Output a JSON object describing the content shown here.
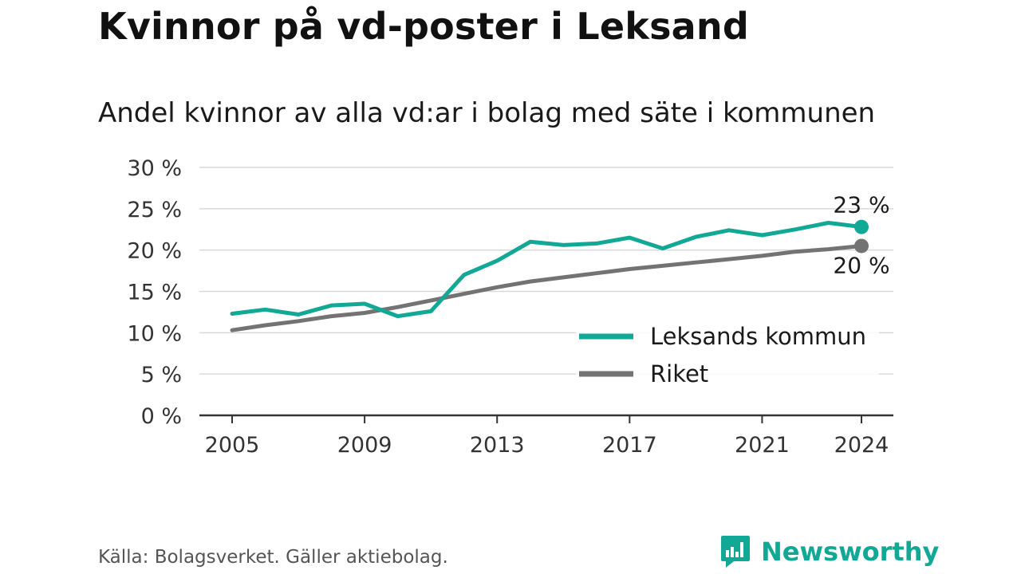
{
  "title": "Kvinnor på vd-poster i Leksand",
  "subtitle": "Andel kvinnor av alla vd:ar i bolag med säte i kommunen",
  "source": "Källa: Bolagsverket. Gäller aktiebolag.",
  "brand": "Newsworthy",
  "colors": {
    "leksand": "#12a896",
    "riket": "#737373",
    "grid": "#d9d9d9",
    "axis": "#333333",
    "brand": "#12a896"
  },
  "chart_data": {
    "type": "line",
    "x": [
      2005,
      2006,
      2007,
      2008,
      2009,
      2010,
      2011,
      2012,
      2013,
      2014,
      2015,
      2016,
      2017,
      2018,
      2019,
      2020,
      2021,
      2022,
      2023,
      2024
    ],
    "series": [
      {
        "name": "Leksands kommun",
        "values": [
          12.3,
          12.8,
          12.2,
          13.3,
          13.5,
          12.0,
          12.6,
          17.0,
          18.7,
          21.0,
          20.6,
          20.8,
          21.5,
          20.2,
          21.6,
          22.4,
          21.8,
          22.5,
          23.3,
          22.8
        ],
        "end_label": "23 %"
      },
      {
        "name": "Riket",
        "values": [
          10.3,
          10.9,
          11.4,
          12.0,
          12.4,
          13.1,
          13.9,
          14.7,
          15.5,
          16.2,
          16.7,
          17.2,
          17.7,
          18.1,
          18.5,
          18.9,
          19.3,
          19.8,
          20.1,
          20.5
        ],
        "end_label": "20 %"
      }
    ],
    "x_ticks": [
      "2005",
      "2009",
      "2013",
      "2017",
      "2021",
      "2024"
    ],
    "y_ticks": [
      "0 %",
      "5 %",
      "10 %",
      "15 %",
      "20 %",
      "25 %",
      "30 %"
    ],
    "ylim": [
      0,
      30
    ],
    "xlim": [
      2005,
      2024
    ],
    "grid": true,
    "legend": "bottom-right"
  }
}
